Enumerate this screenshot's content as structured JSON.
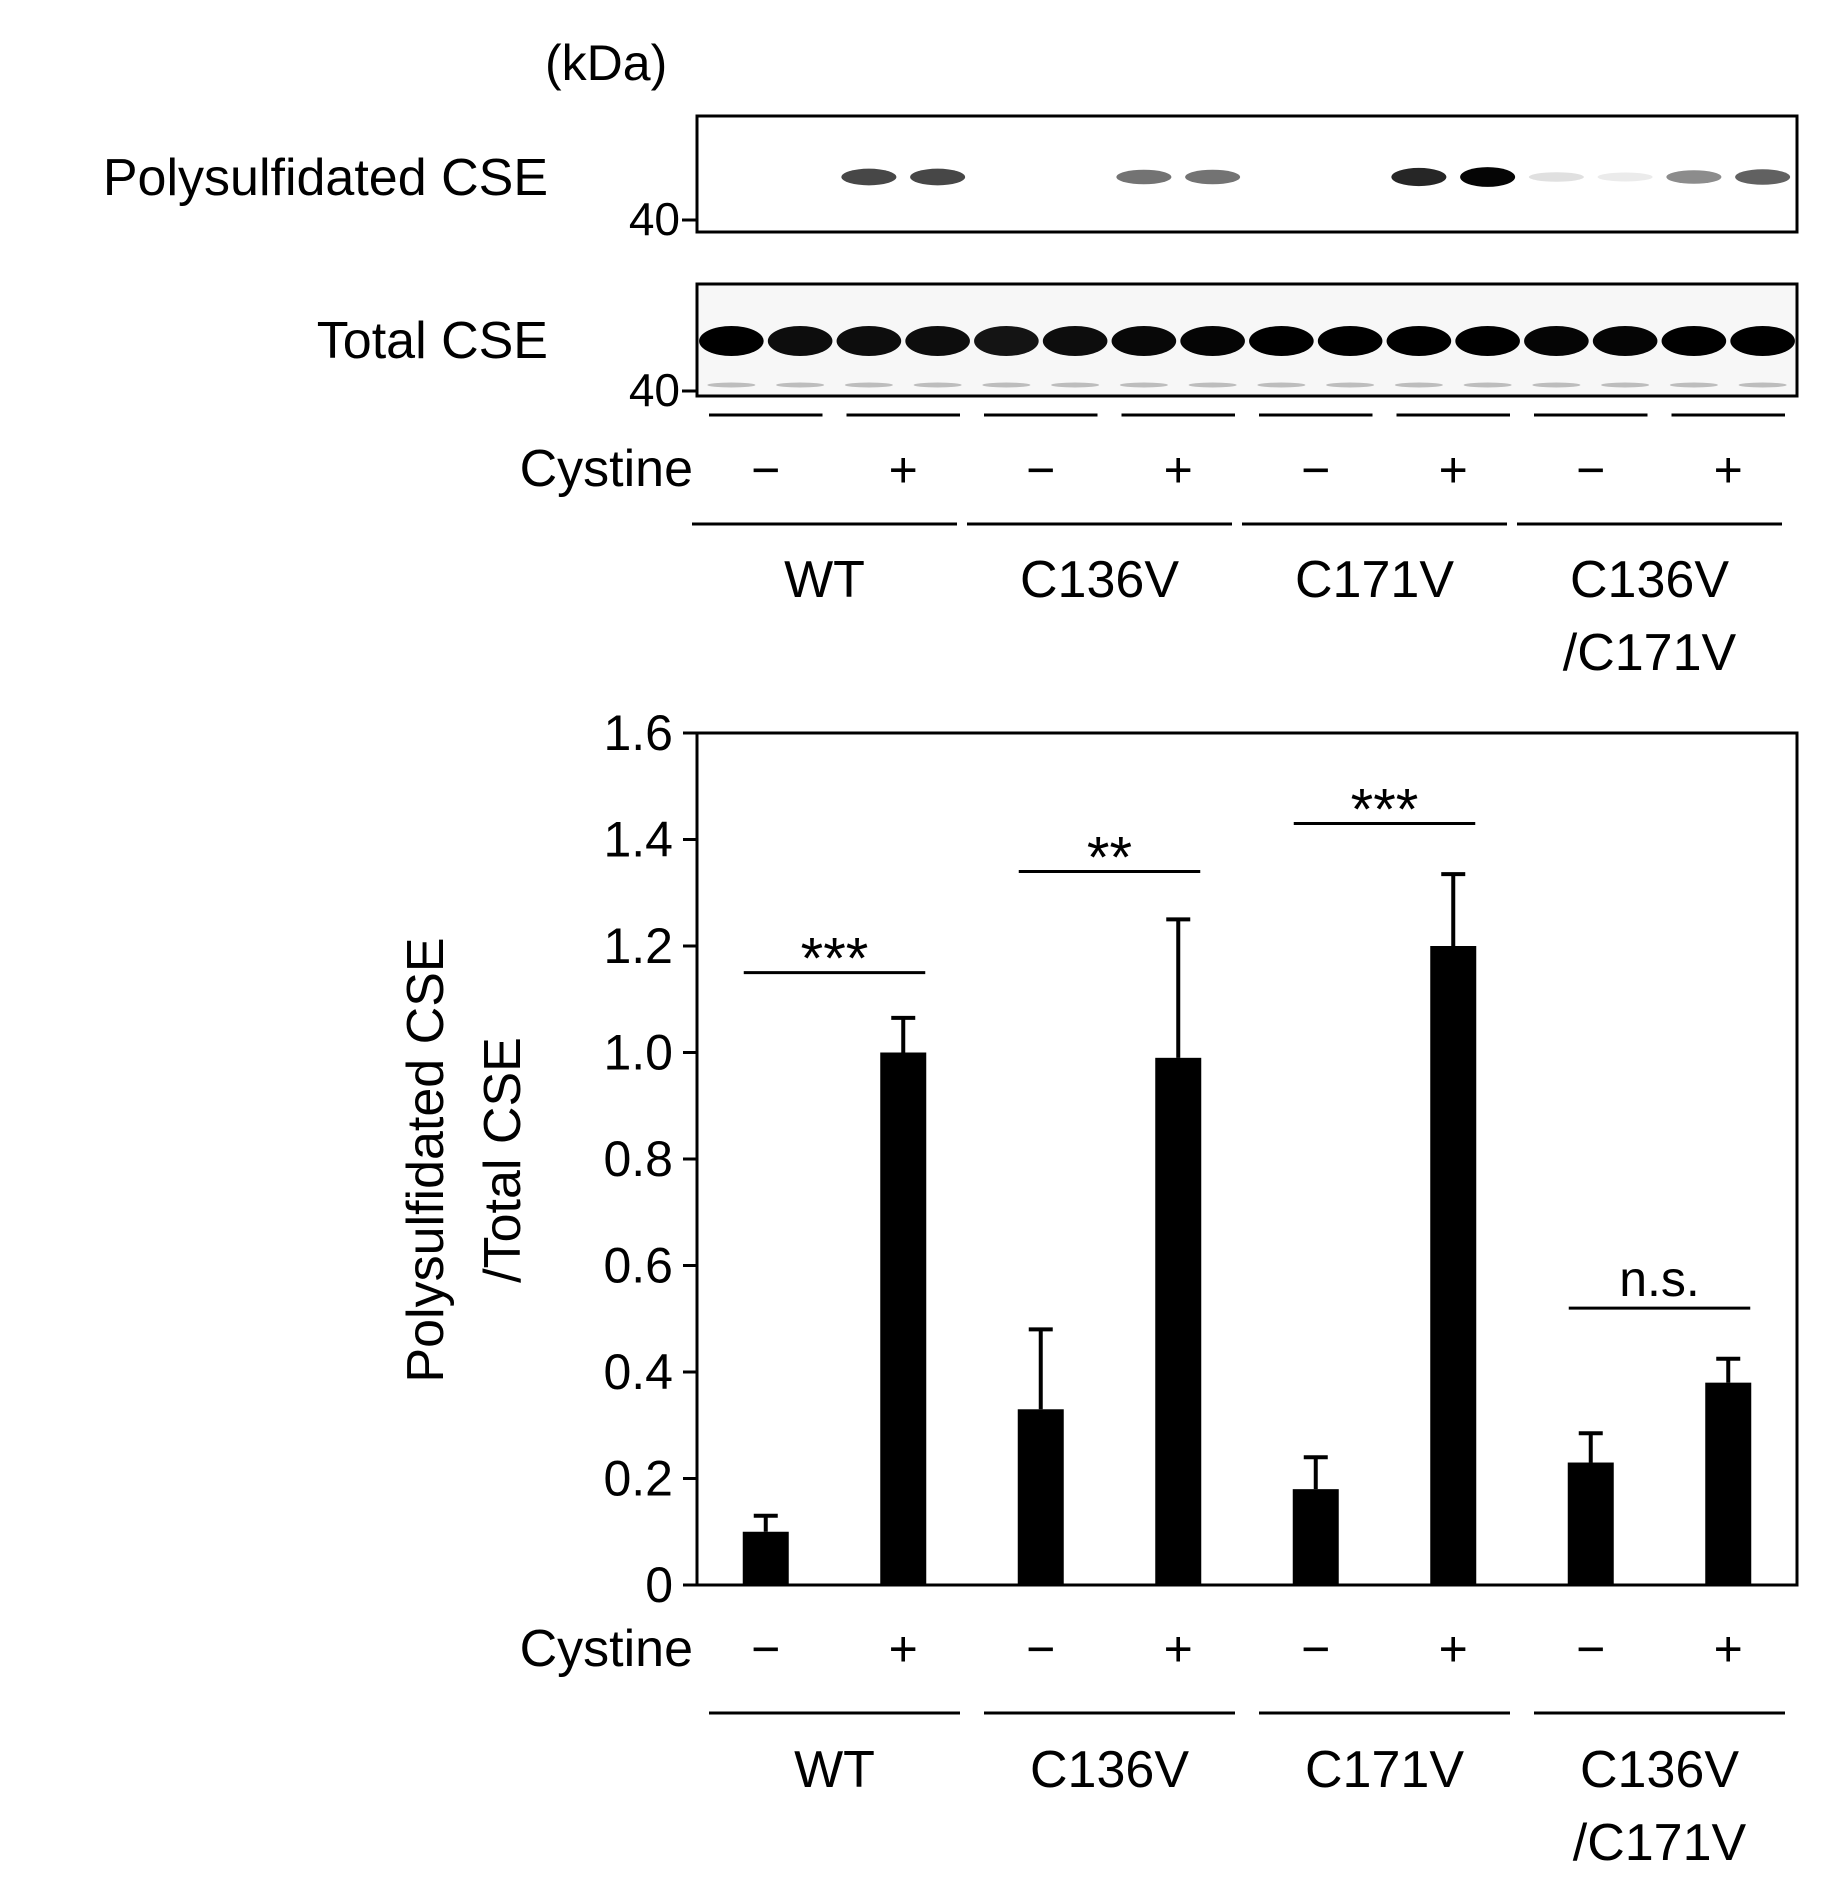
{
  "blot": {
    "unit_label": "(kDa)",
    "rows": [
      {
        "label": "Polysulfidated CSE",
        "marker": "40"
      },
      {
        "label": "Total CSE",
        "marker": "40"
      }
    ],
    "polysulfidated_band_intensity": [
      0,
      0,
      0.72,
      0.72,
      0,
      0,
      0.55,
      0.55,
      0,
      0,
      0.85,
      0.98,
      0.12,
      0.08,
      0.45,
      0.62
    ],
    "total_band_intensity": [
      1,
      0.95,
      0.95,
      0.95,
      0.92,
      0.95,
      0.97,
      0.98,
      1,
      1,
      1,
      1,
      0.98,
      0.98,
      1,
      1
    ],
    "cystine_label": "Cystine",
    "cystine_signs": [
      "−",
      "+",
      "−",
      "+",
      "−",
      "+",
      "−",
      "+"
    ],
    "groups": [
      {
        "line1": "WT",
        "line2": ""
      },
      {
        "line1": "C136V",
        "line2": ""
      },
      {
        "line1": "C171V",
        "line2": ""
      },
      {
        "line1": "C136V",
        "line2": "/C171V"
      }
    ]
  },
  "chart_data": {
    "type": "bar",
    "ylabel_line1": "Polysulfidated CSE",
    "ylabel_line2": "/Total CSE",
    "ylim": [
      0,
      1.6
    ],
    "yticks": [
      "0",
      "0.2",
      "0.4",
      "0.6",
      "0.8",
      "1.0",
      "1.2",
      "1.4",
      "1.6"
    ],
    "bar_color": "#000000",
    "values": [
      0.1,
      1.0,
      0.33,
      0.99,
      0.18,
      1.2,
      0.23,
      0.38
    ],
    "errors": [
      0.03,
      0.065,
      0.15,
      0.26,
      0.06,
      0.135,
      0.055,
      0.045
    ],
    "cystine_label": "Cystine",
    "cystine_signs": [
      "−",
      "+",
      "−",
      "+",
      "−",
      "+",
      "−",
      "+"
    ],
    "groups": [
      {
        "line1": "WT",
        "line2": ""
      },
      {
        "line1": "C136V",
        "line2": ""
      },
      {
        "line1": "C171V",
        "line2": ""
      },
      {
        "line1": "C136V",
        "line2": "/C171V"
      }
    ],
    "significance": [
      {
        "group": 0,
        "label": "***",
        "y": 1.15
      },
      {
        "group": 1,
        "label": "**",
        "y": 1.34
      },
      {
        "group": 2,
        "label": "***",
        "y": 1.43
      },
      {
        "group": 3,
        "label": "n.s.",
        "y": 0.52
      }
    ]
  }
}
